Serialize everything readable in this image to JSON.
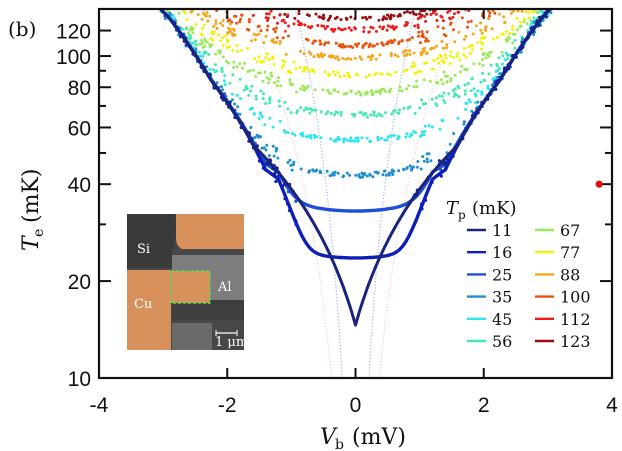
{
  "chart_data": {
    "type": "scatter",
    "panel_label": "(b)",
    "title": "",
    "xlabel": {
      "symbol": "V",
      "subscript": "b",
      "unit": "(mV)"
    },
    "ylabel": {
      "symbol": "T",
      "subscript": "e",
      "unit": "(mK)"
    },
    "xlim": [
      -4,
      4
    ],
    "ylim": [
      10,
      140
    ],
    "yscale": "log",
    "x_ticks": [
      -4,
      -2,
      0,
      2,
      4
    ],
    "x_tick_labels": [
      "-4",
      "-2",
      "0",
      "2",
      "4"
    ],
    "y_ticks": [
      10,
      20,
      40,
      60,
      80,
      100,
      120
    ],
    "y_tick_labels": [
      "10",
      "20",
      "40",
      "60",
      "80",
      "100",
      "120"
    ],
    "y_minor_ticks": [
      30,
      50,
      70,
      90
    ],
    "grid": false,
    "legend": {
      "title_symbol": "T",
      "title_subscript": "p",
      "title_unit": "(mK)",
      "placement": "lower-right",
      "columns": 2
    },
    "series": [
      {
        "name": "11",
        "color": "#1a237e",
        "Te_at_zero_bias": 14.6,
        "style": "line"
      },
      {
        "name": "16",
        "color": "#0d1fb8",
        "Te_at_zero_bias": 23.6,
        "style": "line"
      },
      {
        "name": "25",
        "color": "#1e4fd6",
        "Te_at_zero_bias": 33.0,
        "style": "line"
      },
      {
        "name": "35",
        "color": "#1f8fd0",
        "Te_at_zero_bias": 42.7,
        "style": "scatter"
      },
      {
        "name": "45",
        "color": "#2ee6f0",
        "Te_at_zero_bias": 54.8,
        "style": "scatter"
      },
      {
        "name": "56",
        "color": "#45e8b4",
        "Te_at_zero_bias": 65.6,
        "style": "scatter"
      },
      {
        "name": "67",
        "color": "#9be85a",
        "Te_at_zero_bias": 76.8,
        "style": "scatter"
      },
      {
        "name": "77",
        "color": "#f2f20e",
        "Te_at_zero_bias": 87.4,
        "style": "scatter"
      },
      {
        "name": "88",
        "color": "#f7a51c",
        "Te_at_zero_bias": 98.6,
        "style": "scatter"
      },
      {
        "name": "100",
        "color": "#e8540e",
        "Te_at_zero_bias": 108.0,
        "style": "scatter"
      },
      {
        "name": "112",
        "color": "#ee1c1c",
        "Te_at_zero_bias": 120.5,
        "style": "scatter"
      },
      {
        "name": "123",
        "color": "#9a0d12",
        "Te_at_zero_bias": 130.0,
        "style": "scatter"
      }
    ],
    "high_bias_envelope": {
      "V_mV": [
        1.2,
        1.4,
        1.75,
        2.25,
        2.9
      ],
      "Te_mK": [
        41,
        44,
        60,
        84,
        131
      ]
    },
    "theory_dotted_lines": [
      {
        "color": "#7f9fdc",
        "V_at_10mK": 0.21,
        "V_at_130mK": 0.9
      },
      {
        "color": "#f0b8a8",
        "V_at_10mK": 0.37,
        "V_at_130mK": 1.6
      }
    ],
    "annotations": [
      {
        "text": "marker",
        "V_mV": 3.8,
        "Te_mK": 40,
        "color": "#e01010"
      }
    ],
    "inset": {
      "description": "false-color SEM image of device",
      "labels": [
        "Si",
        "Al",
        "Cu"
      ],
      "scale_bar": "1 μm",
      "colors": {
        "Cu": "#d8915a",
        "Al": "#8a8a8a",
        "Si": "#3c3c3c",
        "highlight": "#44dd44"
      }
    }
  }
}
